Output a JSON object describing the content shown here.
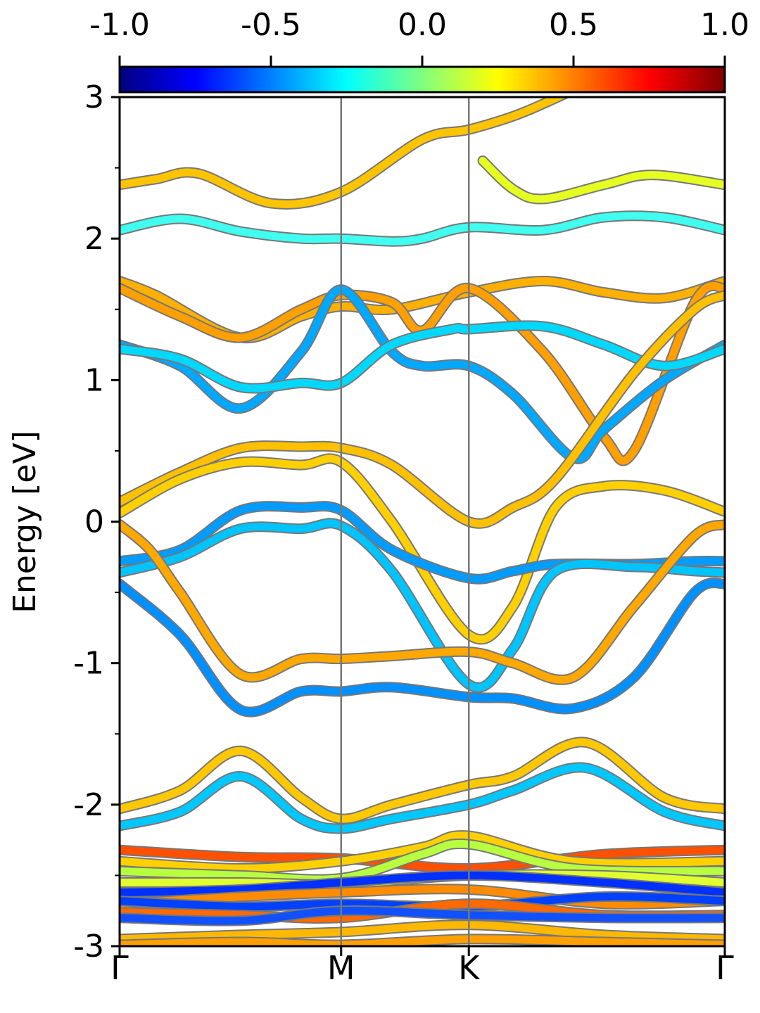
{
  "chart_data": {
    "type": "line",
    "title": "",
    "xlabel": "",
    "ylabel": "Energy [eV]",
    "ylim": [
      -3,
      3
    ],
    "yticks": [
      "-3",
      "-2",
      "-1",
      "0",
      "1",
      "2",
      "3"
    ],
    "xlim": [
      0,
      1
    ],
    "kpoints": [
      {
        "label": "Γ",
        "x": 0.0
      },
      {
        "label": "M",
        "x": 0.366
      },
      {
        "label": "K",
        "x": 0.577
      },
      {
        "label": "Γ",
        "x": 1.0
      }
    ],
    "colorbar": {
      "colormap": "jet",
      "range": [
        -1.0,
        1.0
      ],
      "ticks": [
        "-1.0",
        "-0.5",
        "0.0",
        "0.5",
        "1.0"
      ]
    },
    "grid": false,
    "series": [
      {
        "color": "#ffc400",
        "points": [
          [
            0,
            2.38
          ],
          [
            0.06,
            2.42
          ],
          [
            0.13,
            2.46
          ],
          [
            0.25,
            2.25
          ],
          [
            0.366,
            2.33
          ],
          [
            0.5,
            2.7
          ],
          [
            0.577,
            2.77
          ],
          [
            0.66,
            2.88
          ],
          [
            0.75,
            3.05
          ]
        ]
      },
      {
        "color": "#e5ff20",
        "points": [
          [
            0.6,
            2.55
          ],
          [
            0.65,
            2.35
          ],
          [
            0.7,
            2.28
          ],
          [
            0.8,
            2.38
          ],
          [
            0.88,
            2.45
          ],
          [
            1.0,
            2.38
          ]
        ]
      },
      {
        "color": "#40fff0",
        "points": [
          [
            0,
            2.06
          ],
          [
            0.1,
            2.14
          ],
          [
            0.2,
            2.05
          ],
          [
            0.3,
            2.0
          ],
          [
            0.366,
            2.0
          ],
          [
            0.45,
            1.98
          ],
          [
            0.5,
            2.0
          ],
          [
            0.577,
            2.08
          ],
          [
            0.7,
            2.06
          ],
          [
            0.8,
            2.15
          ],
          [
            0.9,
            2.15
          ],
          [
            1.0,
            2.06
          ]
        ]
      },
      {
        "color": "#ffb000",
        "points": [
          [
            0,
            1.7
          ],
          [
            0.06,
            1.6
          ],
          [
            0.2,
            1.3
          ],
          [
            0.3,
            1.45
          ],
          [
            0.366,
            1.52
          ],
          [
            0.45,
            1.5
          ],
          [
            0.577,
            1.62
          ],
          [
            0.7,
            1.7
          ],
          [
            0.8,
            1.62
          ],
          [
            0.9,
            1.58
          ],
          [
            1.0,
            1.7
          ]
        ]
      },
      {
        "color": "#ffa000",
        "points": [
          [
            0,
            1.65
          ],
          [
            0.1,
            1.45
          ],
          [
            0.2,
            1.3
          ],
          [
            0.3,
            1.5
          ],
          [
            0.366,
            1.6
          ],
          [
            0.45,
            1.55
          ],
          [
            0.5,
            1.35
          ],
          [
            0.577,
            1.65
          ],
          [
            0.7,
            1.2
          ],
          [
            0.8,
            0.6
          ],
          [
            0.85,
            0.5
          ],
          [
            0.95,
            1.55
          ],
          [
            1.0,
            1.65
          ]
        ]
      },
      {
        "color": "#00a8ff",
        "points": [
          [
            0,
            1.25
          ],
          [
            0.1,
            1.1
          ],
          [
            0.2,
            0.8
          ],
          [
            0.3,
            1.2
          ],
          [
            0.366,
            1.64
          ],
          [
            0.45,
            1.2
          ],
          [
            0.5,
            1.1
          ],
          [
            0.577,
            1.1
          ],
          [
            0.65,
            0.9
          ],
          [
            0.75,
            0.45
          ],
          [
            0.8,
            0.65
          ],
          [
            0.9,
            1.0
          ],
          [
            1.0,
            1.25
          ]
        ]
      },
      {
        "color": "#00d8ff",
        "points": [
          [
            0,
            1.22
          ],
          [
            0.1,
            1.15
          ],
          [
            0.2,
            0.95
          ],
          [
            0.3,
            0.98
          ],
          [
            0.366,
            0.98
          ],
          [
            0.45,
            1.25
          ],
          [
            0.55,
            1.36
          ],
          [
            0.577,
            1.36
          ],
          [
            0.7,
            1.38
          ],
          [
            0.8,
            1.25
          ],
          [
            0.9,
            1.1
          ],
          [
            1.0,
            1.22
          ]
        ]
      },
      {
        "color": "#ffc000",
        "points": [
          [
            0,
            0.14
          ],
          [
            0.1,
            0.35
          ],
          [
            0.2,
            0.52
          ],
          [
            0.3,
            0.53
          ],
          [
            0.366,
            0.52
          ],
          [
            0.45,
            0.4
          ],
          [
            0.577,
            0.0
          ],
          [
            0.65,
            0.1
          ],
          [
            0.72,
            0.3
          ],
          [
            0.85,
            1.05
          ],
          [
            0.95,
            1.5
          ],
          [
            1.0,
            1.6
          ]
        ]
      },
      {
        "color": "#ffd000",
        "points": [
          [
            0,
            0.06
          ],
          [
            0.1,
            0.3
          ],
          [
            0.2,
            0.42
          ],
          [
            0.3,
            0.4
          ],
          [
            0.366,
            0.42
          ],
          [
            0.45,
            0.0
          ],
          [
            0.577,
            -0.8
          ],
          [
            0.65,
            -0.6
          ],
          [
            0.72,
            0.1
          ],
          [
            0.8,
            0.25
          ],
          [
            0.9,
            0.22
          ],
          [
            1.0,
            0.07
          ]
        ]
      },
      {
        "color": "#009cff",
        "points": [
          [
            0,
            -0.28
          ],
          [
            0.1,
            -0.2
          ],
          [
            0.2,
            0.08
          ],
          [
            0.3,
            0.1
          ],
          [
            0.366,
            0.08
          ],
          [
            0.45,
            -0.2
          ],
          [
            0.577,
            -0.4
          ],
          [
            0.65,
            -0.35
          ],
          [
            0.72,
            -0.3
          ],
          [
            0.85,
            -0.3
          ],
          [
            0.95,
            -0.28
          ],
          [
            1.0,
            -0.28
          ]
        ]
      },
      {
        "color": "#00c4ff",
        "points": [
          [
            0,
            -0.36
          ],
          [
            0.1,
            -0.25
          ],
          [
            0.2,
            -0.05
          ],
          [
            0.3,
            -0.05
          ],
          [
            0.366,
            -0.03
          ],
          [
            0.45,
            -0.35
          ],
          [
            0.577,
            -1.15
          ],
          [
            0.65,
            -0.9
          ],
          [
            0.72,
            -0.35
          ],
          [
            0.85,
            -0.32
          ],
          [
            0.95,
            -0.35
          ],
          [
            1.0,
            -0.36
          ]
        ]
      },
      {
        "color": "#ffa800",
        "points": [
          [
            0,
            -0.02
          ],
          [
            0.05,
            -0.2
          ],
          [
            0.1,
            -0.5
          ],
          [
            0.2,
            -1.08
          ],
          [
            0.3,
            -0.97
          ],
          [
            0.366,
            -0.97
          ],
          [
            0.45,
            -0.95
          ],
          [
            0.577,
            -0.92
          ],
          [
            0.65,
            -1.0
          ],
          [
            0.75,
            -1.1
          ],
          [
            0.85,
            -0.6
          ],
          [
            0.95,
            -0.1
          ],
          [
            1.0,
            -0.02
          ]
        ]
      },
      {
        "color": "#0090ff",
        "points": [
          [
            0,
            -0.44
          ],
          [
            0.1,
            -0.8
          ],
          [
            0.2,
            -1.33
          ],
          [
            0.3,
            -1.2
          ],
          [
            0.366,
            -1.2
          ],
          [
            0.45,
            -1.17
          ],
          [
            0.577,
            -1.24
          ],
          [
            0.65,
            -1.25
          ],
          [
            0.75,
            -1.32
          ],
          [
            0.85,
            -1.1
          ],
          [
            0.95,
            -0.5
          ],
          [
            1.0,
            -0.44
          ]
        ]
      },
      {
        "color": "#ffc800",
        "points": [
          [
            0,
            -2.03
          ],
          [
            0.1,
            -1.9
          ],
          [
            0.2,
            -1.62
          ],
          [
            0.3,
            -1.95
          ],
          [
            0.366,
            -2.1
          ],
          [
            0.45,
            -2.0
          ],
          [
            0.577,
            -1.86
          ],
          [
            0.65,
            -1.8
          ],
          [
            0.77,
            -1.56
          ],
          [
            0.9,
            -1.95
          ],
          [
            1.0,
            -2.03
          ]
        ]
      },
      {
        "color": "#00c8ff",
        "points": [
          [
            0,
            -2.15
          ],
          [
            0.1,
            -2.05
          ],
          [
            0.2,
            -1.8
          ],
          [
            0.3,
            -2.1
          ],
          [
            0.366,
            -2.17
          ],
          [
            0.45,
            -2.1
          ],
          [
            0.577,
            -2.0
          ],
          [
            0.65,
            -1.9
          ],
          [
            0.77,
            -1.74
          ],
          [
            0.9,
            -2.05
          ],
          [
            1.0,
            -2.15
          ]
        ]
      },
      {
        "color": "#ff5000",
        "points": [
          [
            0,
            -2.32
          ],
          [
            0.2,
            -2.37
          ],
          [
            0.366,
            -2.38
          ],
          [
            0.577,
            -2.45
          ],
          [
            0.8,
            -2.35
          ],
          [
            1.0,
            -2.32
          ]
        ]
      },
      {
        "color": "#ffd000",
        "points": [
          [
            0,
            -2.4
          ],
          [
            0.2,
            -2.45
          ],
          [
            0.366,
            -2.4
          ],
          [
            0.5,
            -2.3
          ],
          [
            0.577,
            -2.22
          ],
          [
            0.75,
            -2.4
          ],
          [
            1.0,
            -2.4
          ]
        ]
      },
      {
        "color": "#b8ff40",
        "points": [
          [
            0,
            -2.47
          ],
          [
            0.2,
            -2.5
          ],
          [
            0.366,
            -2.52
          ],
          [
            0.5,
            -2.35
          ],
          [
            0.577,
            -2.28
          ],
          [
            0.75,
            -2.45
          ],
          [
            1.0,
            -2.47
          ]
        ]
      },
      {
        "color": "#e0ff30",
        "points": [
          [
            0,
            -2.55
          ],
          [
            0.2,
            -2.55
          ],
          [
            0.366,
            -2.56
          ],
          [
            0.577,
            -2.5
          ],
          [
            0.8,
            -2.5
          ],
          [
            1.0,
            -2.55
          ]
        ]
      },
      {
        "color": "#0030ff",
        "points": [
          [
            0,
            -2.62
          ],
          [
            0.2,
            -2.6
          ],
          [
            0.366,
            -2.55
          ],
          [
            0.577,
            -2.5
          ],
          [
            0.8,
            -2.55
          ],
          [
            1.0,
            -2.62
          ]
        ]
      },
      {
        "color": "#ff8c00",
        "points": [
          [
            0,
            -2.7
          ],
          [
            0.2,
            -2.65
          ],
          [
            0.366,
            -2.62
          ],
          [
            0.577,
            -2.6
          ],
          [
            0.8,
            -2.7
          ],
          [
            1.0,
            -2.68
          ]
        ]
      },
      {
        "color": "#0040ff",
        "points": [
          [
            0,
            -2.68
          ],
          [
            0.2,
            -2.72
          ],
          [
            0.366,
            -2.7
          ],
          [
            0.577,
            -2.72
          ],
          [
            0.8,
            -2.65
          ],
          [
            1.0,
            -2.68
          ]
        ]
      },
      {
        "color": "#ff6a00",
        "points": [
          [
            0,
            -2.76
          ],
          [
            0.2,
            -2.78
          ],
          [
            0.366,
            -2.8
          ],
          [
            0.577,
            -2.7
          ],
          [
            0.8,
            -2.78
          ],
          [
            1.0,
            -2.78
          ]
        ]
      },
      {
        "color": "#1050ff",
        "points": [
          [
            0,
            -2.8
          ],
          [
            0.2,
            -2.82
          ],
          [
            0.366,
            -2.75
          ],
          [
            0.577,
            -2.78
          ],
          [
            0.8,
            -2.8
          ],
          [
            1.0,
            -2.8
          ]
        ]
      },
      {
        "color": "#ffb800",
        "points": [
          [
            0,
            -2.95
          ],
          [
            0.2,
            -2.92
          ],
          [
            0.366,
            -2.9
          ],
          [
            0.577,
            -2.85
          ],
          [
            0.8,
            -2.92
          ],
          [
            1.0,
            -2.95
          ]
        ]
      },
      {
        "color": "#ffa000",
        "points": [
          [
            0,
            -2.99
          ],
          [
            0.2,
            -2.97
          ],
          [
            0.366,
            -2.99
          ],
          [
            0.577,
            -2.95
          ],
          [
            0.8,
            -2.97
          ],
          [
            1.0,
            -2.99
          ]
        ]
      }
    ]
  }
}
